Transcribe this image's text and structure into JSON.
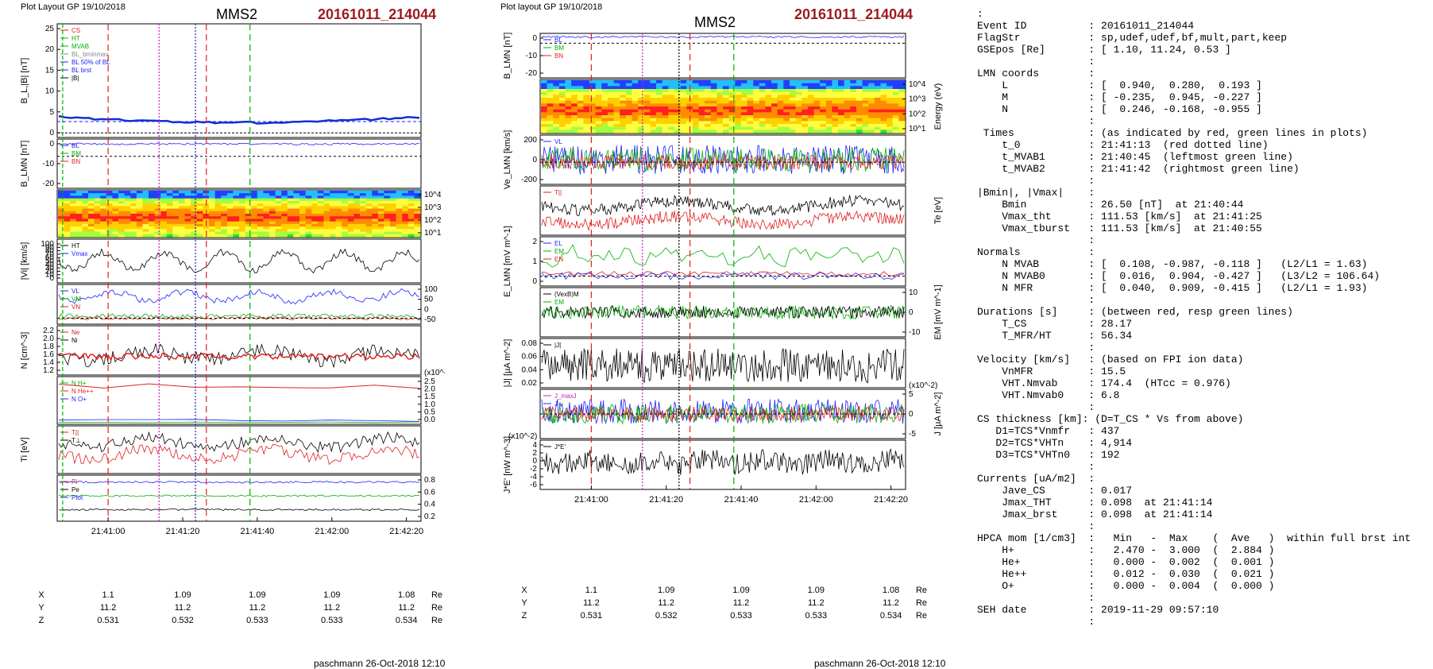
{
  "left": {
    "plot_header": "Plot Layout GP 19/10/2018",
    "spacecraft": "MMS2",
    "event": "20161011_214044",
    "footer": "paschmann 26-Oct-2018 12:10",
    "time_ticks": [
      "21:41:00",
      "21:41:20",
      "21:41:40",
      "21:42:00",
      "21:42:20"
    ],
    "pos_rows": [
      {
        "label": "X",
        "values": [
          "1.1",
          "1.09",
          "1.09",
          "1.09",
          "1.08"
        ],
        "unit": "Re"
      },
      {
        "label": "Y",
        "values": [
          "11.2",
          "11.2",
          "11.2",
          "11.2",
          "11.2"
        ],
        "unit": "Re"
      },
      {
        "label": "Z",
        "values": [
          "0.531",
          "0.532",
          "0.533",
          "0.533",
          "0.534"
        ],
        "unit": "Re"
      }
    ],
    "panels": [
      {
        "ylabel": "B_L,|B| [nT]",
        "ticks": [
          "25",
          "20",
          "15",
          "10",
          "5",
          "0"
        ],
        "legend": [
          "CS",
          "HT",
          "MVAB",
          "BL_bminmax",
          "BL 50% of BL",
          "BL brst",
          "|B|"
        ]
      },
      {
        "ylabel": "B_LMN [nT]",
        "ticks": [
          "0",
          "-10",
          "-20"
        ],
        "legend": [
          "BL",
          "BM",
          "BN"
        ]
      },
      {
        "ylabel": "Energy (eV)",
        "ticks": [
          "10^4",
          "10^3",
          "10^2",
          "10^1"
        ]
      },
      {
        "ylabel": "|Vi| [km/s]",
        "ticks": [
          "100",
          "90",
          "80",
          "70",
          "60",
          "50",
          "40",
          "30",
          "20",
          "10",
          "0"
        ],
        "legend": [
          "HT",
          "Vmax"
        ]
      },
      {
        "ylabel": "Vi_LMN [km/s]",
        "ticks": [
          "100",
          "50",
          "0",
          "-50"
        ],
        "legend": [
          "VL",
          "VM",
          "VN"
        ]
      },
      {
        "ylabel": "N [cm^-3]",
        "ticks": [
          "2.2",
          "2.0",
          "1.8",
          "1.6",
          "1.4",
          "1.2"
        ],
        "legend": [
          "Ne",
          "Ni"
        ]
      },
      {
        "ylabel": "Ni [cm^-3]",
        "ticks": [
          "2.5",
          "2.0",
          "1.5",
          "1.0",
          "0.5",
          "0.0"
        ],
        "multiplier": "(x10^-2)",
        "legend": [
          "N H+",
          "N He++",
          "N O+"
        ]
      },
      {
        "ylabel": "Ti [eV]",
        "legend": [
          "T||",
          "T⊥"
        ]
      },
      {
        "ylabel": "P [nPa]",
        "ticks": [
          "0.8",
          "0.6",
          "0.4",
          "0.2"
        ],
        "legend": [
          "Pi",
          "Pe",
          "Ptot"
        ]
      }
    ]
  },
  "middle": {
    "plot_header": "Plot layout GP 19/10/2018",
    "spacecraft": "MMS2",
    "event": "20161011_214044",
    "footer": "paschmann 26-Oct-2018 12:10",
    "time_ticks": [
      "21:41:00",
      "21:41:20",
      "21:41:40",
      "21:42:00",
      "21:42:20"
    ],
    "pos_rows": [
      {
        "label": "X",
        "values": [
          "1.1",
          "1.09",
          "1.09",
          "1.09",
          "1.08"
        ],
        "unit": "Re"
      },
      {
        "label": "Y",
        "values": [
          "11.2",
          "11.2",
          "11.2",
          "11.2",
          "11.2"
        ],
        "unit": "Re"
      },
      {
        "label": "Z",
        "values": [
          "0.531",
          "0.532",
          "0.533",
          "0.533",
          "0.534"
        ],
        "unit": "Re"
      }
    ],
    "panels": [
      {
        "ylabel": "B_LMN [nT]",
        "ticks": [
          "0",
          "-10",
          "-20"
        ],
        "legend": [
          "BL",
          "BM",
          "BN"
        ]
      },
      {
        "ylabel": "Energy (eV)",
        "ticks": [
          "10^4",
          "10^3",
          "10^2",
          "10^1"
        ]
      },
      {
        "ylabel": "Ve_LMN [km/s]",
        "ticks": [
          "200",
          "0",
          "-200"
        ],
        "legend": [
          "VL"
        ]
      },
      {
        "ylabel": "Te [eV]",
        "legend": [
          "T||"
        ]
      },
      {
        "ylabel": "E_LMN [mV m^-1]",
        "ticks": [
          "2",
          "1",
          "0"
        ],
        "legend": [
          "EL",
          "EM",
          "EN"
        ]
      },
      {
        "ylabel": "EM [mV m^-1]",
        "ticks": [
          "10",
          "0",
          "-10"
        ],
        "legend": [
          "(VexB)M",
          "EM"
        ]
      },
      {
        "ylabel": "|J| [µA m^-2]",
        "ticks": [
          "0.08",
          "0.06",
          "0.04",
          "0.02"
        ],
        "legend": [
          "|J|"
        ]
      },
      {
        "ylabel": "J [µA m^-2]",
        "ticks": [
          "5",
          "0",
          "-5"
        ],
        "multiplier": "(x10^-2)",
        "legend": [
          "J_maxJ",
          "J"
        ]
      },
      {
        "ylabel": "J*E' [nW m^-3]",
        "ticks": [
          "4",
          "2",
          "0",
          "-2",
          "-4",
          "-6"
        ],
        "multiplier": "(x10^-2)",
        "legend": [
          "J*E'"
        ]
      }
    ]
  },
  "right_lines": [
    ":",
    "Event ID          : 20161011_214044",
    "FlagStr           : sp,udef,udef,bf,mult,part,keep",
    "GSEpos [Re]       : [ 1.10, 11.24, 0.53 ]",
    "                  :",
    "LMN coords        :",
    "    L             : [  0.940,  0.280,  0.193 ]",
    "    M             : [ -0.235,  0.945, -0.227 ]",
    "    N             : [  0.246, -0.168, -0.955 ]",
    "                  :",
    " Times            : (as indicated by red, green lines in plots)",
    "    t_0           : 21:41:13  (red dotted line)",
    "    t_MVAB1       : 21:40:45  (leftmost green line)",
    "    t_MVAB2       : 21:41:42  (rightmost green line)",
    "                  :",
    "|Bmin|, |Vmax|    :",
    "    Bmin          : 26.50 [nT]  at 21:40:44",
    "    Vmax_tht      : 111.53 [km/s]  at 21:41:25",
    "    Vmax_tburst   : 111.53 [km/s]  at 21:40:55",
    "                  :",
    "Normals           :",
    "    N MVAB        : [  0.108, -0.987, -0.118 ]   (L2/L1 = 1.63)",
    "    N MVAB0       : [  0.016,  0.904, -0.427 ]   (L3/L2 = 106.64)",
    "    N MFR         : [  0.040,  0.909, -0.415 ]   (L2/L1 = 1.93)",
    "                  :",
    "Durations [s]     : (between red, resp green lines)",
    "    T_CS          : 28.17",
    "    T_MFR/HT      : 56.34",
    "                  :",
    "Velocity [km/s]   : (based on FPI ion data)",
    "    VnMFR         : 15.5",
    "    VHT.Nmvab     : 174.4  (HTcc = 0.976)",
    "    VHT.Nmvab0    : 6.8",
    "                  :",
    "CS thickness [km]: (D=T_CS * Vs from above)",
    "   D1=TCS*Vnmfr   : 437",
    "   D2=TCS*VHTn    : 4,914",
    "   D3=TCS*VHTn0   : 192",
    "                  :",
    "Currents [uA/m2]  :",
    "    Jave_CS       : 0.017",
    "    Jmax_THT      : 0.098  at 21:41:14",
    "    Jmax_brst     : 0.098  at 21:41:14",
    "                  :",
    "HPCA mom [1/cm3]  :   Min   -  Max    (  Ave   )  within full brst int",
    "    H+            :   2.470 -  3.000  (  2.884 )",
    "    He+           :   0.000 -  0.002  (  0.001 )",
    "    He++          :   0.012 -  0.030  (  0.021 )",
    "    O+            :   0.000 -  0.004  (  0.000 )",
    "                  :",
    "SEH date          : 2019-11-29 09:57:10",
    "                  :"
  ],
  "chart_data": [
    {
      "type": "line",
      "title": "MMS2 20161011_214044",
      "xlabel": "",
      "x_ticks": [
        "21:41:00",
        "21:41:20",
        "21:41:40",
        "21:42:00",
        "21:42:20"
      ],
      "markers": {
        "t_0": "21:41:13",
        "t_MVAB1": "21:40:45",
        "t_MVAB2": "21:41:42"
      },
      "series": [
        {
          "name": "|B|",
          "y_approx": [
            3,
            3,
            3.5,
            4,
            4.5,
            4.5,
            4,
            4,
            4.2,
            4.2
          ]
        },
        {
          "name": "Ni H+ (x10^-2)",
          "y_approx": [
            2.3,
            2.1,
            2.6,
            2.0,
            2.1,
            1.3,
            2.1,
            2.7
          ]
        },
        {
          "name": "Ni O+ (x10^-2)",
          "y_approx": [
            0.0,
            0.0,
            0.1,
            0.4,
            0.1,
            0.1,
            0.0,
            0.0
          ]
        }
      ],
      "grid": false
    }
  ]
}
